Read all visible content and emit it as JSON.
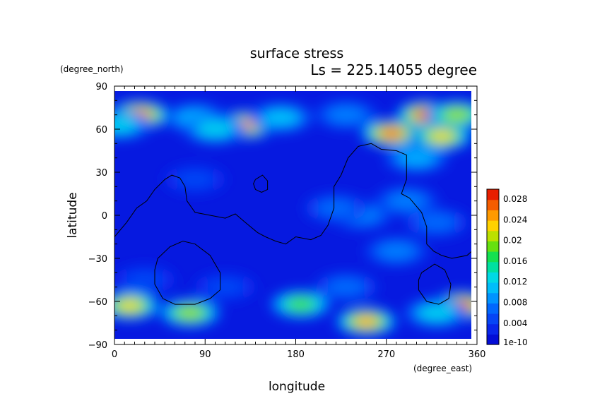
{
  "chart_data": {
    "type": "heatmap",
    "title": "surface stress",
    "subtitle": "Ls = 225.14055 degree",
    "xlabel": "longitude",
    "ylabel": "latitude",
    "x_units": "(degree_east)",
    "y_units": "(degree_north)",
    "xlim": [
      0,
      360
    ],
    "ylim": [
      -90,
      90
    ],
    "x_ticks": [
      "0",
      "90",
      "180",
      "270",
      "360"
    ],
    "y_ticks": [
      "90",
      "60",
      "30",
      "0",
      "−30",
      "−60",
      "−90"
    ],
    "colorbar": {
      "labels": [
        "0.028",
        "0.024",
        "0.02",
        "0.016",
        "0.012",
        "0.008",
        "0.004",
        "1e-10"
      ],
      "min": 0,
      "max": 0.03
    },
    "background_value": 0.002,
    "hotspots": [
      {
        "lon": 25,
        "lat": 70,
        "value": 0.026
      },
      {
        "lon": 5,
        "lat": 63,
        "value": 0.012
      },
      {
        "lon": 80,
        "lat": 68,
        "value": 0.01
      },
      {
        "lon": 130,
        "lat": 63,
        "value": 0.025
      },
      {
        "lon": 100,
        "lat": 60,
        "value": 0.012
      },
      {
        "lon": 165,
        "lat": 68,
        "value": 0.011
      },
      {
        "lon": 230,
        "lat": 70,
        "value": 0.008
      },
      {
        "lon": 275,
        "lat": 57,
        "value": 0.026
      },
      {
        "lon": 310,
        "lat": 70,
        "value": 0.028
      },
      {
        "lon": 325,
        "lat": 55,
        "value": 0.022
      },
      {
        "lon": 340,
        "lat": 70,
        "value": 0.02
      },
      {
        "lon": 300,
        "lat": 40,
        "value": 0.01
      },
      {
        "lon": 290,
        "lat": 10,
        "value": 0.008
      },
      {
        "lon": 245,
        "lat": 0,
        "value": 0.008
      },
      {
        "lon": 220,
        "lat": 5,
        "value": 0.007
      },
      {
        "lon": 320,
        "lat": -5,
        "value": 0.007
      },
      {
        "lon": 280,
        "lat": -25,
        "value": 0.008
      },
      {
        "lon": 80,
        "lat": 25,
        "value": 0.005
      },
      {
        "lon": 30,
        "lat": -45,
        "value": 0.005
      },
      {
        "lon": 110,
        "lat": -50,
        "value": 0.005
      },
      {
        "lon": 230,
        "lat": -50,
        "value": 0.007
      },
      {
        "lon": 15,
        "lat": -63,
        "value": 0.022
      },
      {
        "lon": 75,
        "lat": -68,
        "value": 0.02
      },
      {
        "lon": 185,
        "lat": -62,
        "value": 0.018
      },
      {
        "lon": 250,
        "lat": -74,
        "value": 0.024
      },
      {
        "lon": 345,
        "lat": -63,
        "value": 0.028
      },
      {
        "lon": 320,
        "lat": -68,
        "value": 0.012
      }
    ],
    "contours": [
      {
        "points": [
          [
            0,
            -15
          ],
          [
            12,
            -5
          ],
          [
            22,
            5
          ],
          [
            32,
            10
          ],
          [
            40,
            18
          ],
          [
            50,
            25
          ],
          [
            57,
            28
          ],
          [
            65,
            26
          ],
          [
            70,
            20
          ],
          [
            72,
            10
          ],
          [
            80,
            2
          ],
          [
            95,
            0
          ],
          [
            110,
            -2
          ],
          [
            120,
            1
          ],
          [
            130,
            -5
          ],
          [
            142,
            -12
          ],
          [
            150,
            -15
          ],
          [
            160,
            -18
          ],
          [
            170,
            -20
          ],
          [
            180,
            -15
          ],
          [
            195,
            -17
          ],
          [
            205,
            -14
          ],
          [
            212,
            -7
          ],
          [
            218,
            5
          ],
          [
            218,
            20
          ],
          [
            225,
            28
          ],
          [
            232,
            40
          ],
          [
            242,
            48
          ],
          [
            255,
            50
          ],
          [
            265,
            46
          ],
          [
            280,
            45
          ],
          [
            290,
            42
          ],
          [
            290,
            25
          ],
          [
            285,
            15
          ],
          [
            293,
            12
          ],
          [
            305,
            2
          ],
          [
            310,
            -8
          ],
          [
            310,
            -20
          ],
          [
            317,
            -25
          ],
          [
            325,
            -28
          ],
          [
            335,
            -30
          ],
          [
            350,
            -28
          ],
          [
            360,
            -22
          ]
        ]
      },
      {
        "points": [
          [
            140,
            25
          ],
          [
            147,
            28
          ],
          [
            152,
            24
          ],
          [
            152,
            18
          ],
          [
            146,
            16
          ],
          [
            140,
            18
          ],
          [
            138,
            22
          ],
          [
            140,
            25
          ]
        ]
      },
      {
        "points": [
          [
            43,
            -30
          ],
          [
            55,
            -22
          ],
          [
            68,
            -18
          ],
          [
            80,
            -20
          ],
          [
            95,
            -28
          ],
          [
            105,
            -40
          ],
          [
            105,
            -52
          ],
          [
            95,
            -58
          ],
          [
            80,
            -62
          ],
          [
            60,
            -62
          ],
          [
            48,
            -58
          ],
          [
            40,
            -48
          ],
          [
            40,
            -38
          ],
          [
            43,
            -30
          ]
        ]
      },
      {
        "points": [
          [
            305,
            -40
          ],
          [
            318,
            -34
          ],
          [
            328,
            -38
          ],
          [
            334,
            -48
          ],
          [
            332,
            -58
          ],
          [
            322,
            -62
          ],
          [
            310,
            -60
          ],
          [
            302,
            -52
          ],
          [
            302,
            -45
          ],
          [
            305,
            -40
          ]
        ]
      }
    ]
  }
}
